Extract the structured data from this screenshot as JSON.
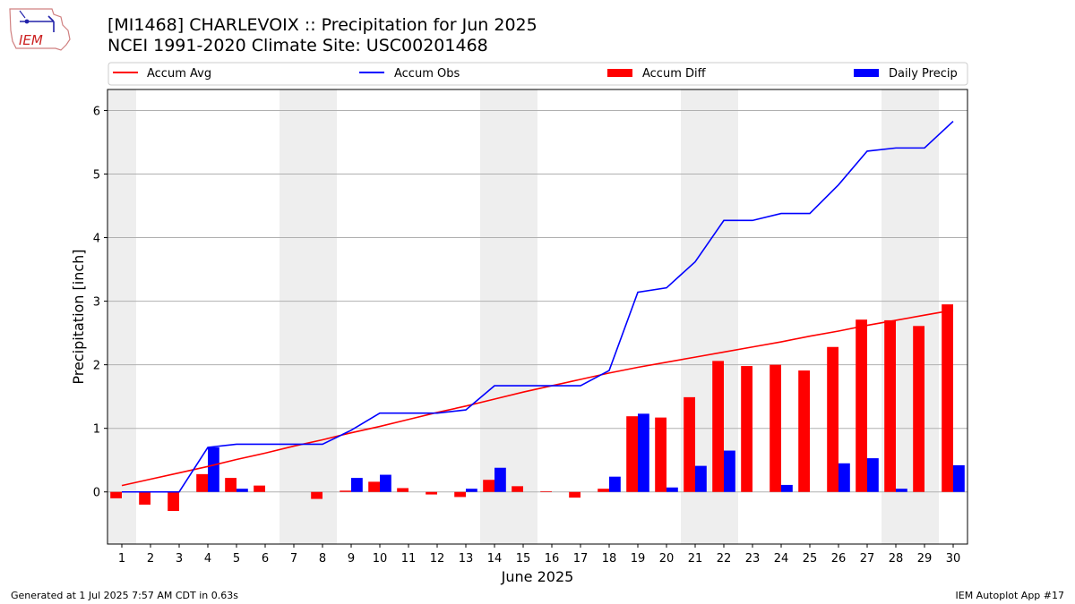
{
  "header": {
    "title_line1": "[MI1468] CHARLEVOIX :: Precipitation for Jun 2025",
    "title_line2": "NCEI 1991-2020 Climate Site: USC00201468",
    "logo_text": "IEM"
  },
  "footer": {
    "generated": "Generated at 1 Jul 2025 7:57 AM CDT in 0.63s",
    "app": "IEM Autoplot App #17"
  },
  "colors": {
    "accum_avg": "#ff0000",
    "accum_obs": "#0000ff",
    "accum_diff": "#ff0000",
    "daily_precip": "#0000ff",
    "weekend_shade": "#eeeeee",
    "grid": "#b0b0b0"
  },
  "chart_data": {
    "type": "bar",
    "xlabel": "June 2025",
    "ylabel": "Precipitation [inch]",
    "ylim": [
      -0.82,
      6.33
    ],
    "xlim": [
      0.5,
      30.5
    ],
    "yticks": [
      0,
      1,
      2,
      3,
      4,
      5,
      6
    ],
    "grid": "horizontal",
    "legend_placement": "top (above plot)",
    "categories": [
      "1",
      "2",
      "3",
      "4",
      "5",
      "6",
      "7",
      "8",
      "9",
      "10",
      "11",
      "12",
      "13",
      "14",
      "15",
      "16",
      "17",
      "18",
      "19",
      "20",
      "21",
      "22",
      "23",
      "24",
      "25",
      "26",
      "27",
      "28",
      "29",
      "30"
    ],
    "shaded_days": [
      [
        0.5,
        1.5
      ],
      [
        6.5,
        8.5
      ],
      [
        13.5,
        15.5
      ],
      [
        20.5,
        22.5
      ],
      [
        27.5,
        29.5
      ]
    ],
    "legend": [
      "Accum Avg",
      "Accum Obs",
      "Accum Diff",
      "Daily Precip"
    ],
    "series": [
      {
        "name": "Accum Avg",
        "kind": "line",
        "values": [
          0.1,
          0.2,
          0.3,
          0.4,
          0.51,
          0.61,
          0.72,
          0.82,
          0.93,
          1.03,
          1.14,
          1.25,
          1.35,
          1.46,
          1.57,
          1.67,
          1.77,
          1.87,
          1.96,
          2.04,
          2.12,
          2.2,
          2.28,
          2.36,
          2.45,
          2.53,
          2.62,
          2.7,
          2.78,
          2.86
        ]
      },
      {
        "name": "Accum Obs",
        "kind": "line",
        "values": [
          0.0,
          0.0,
          0.0,
          0.7,
          0.75,
          0.75,
          0.75,
          0.75,
          0.97,
          1.24,
          1.24,
          1.24,
          1.29,
          1.67,
          1.67,
          1.67,
          1.67,
          1.91,
          3.14,
          3.21,
          3.62,
          4.27,
          4.27,
          4.38,
          4.38,
          4.83,
          5.36,
          5.41,
          5.41,
          5.83
        ]
      },
      {
        "name": "Accum Diff",
        "kind": "bar",
        "values": [
          -0.1,
          -0.2,
          -0.3,
          0.28,
          0.22,
          0.1,
          0.0,
          -0.11,
          0.02,
          0.16,
          0.06,
          -0.04,
          -0.08,
          0.19,
          0.09,
          0.01,
          -0.09,
          0.05,
          1.19,
          1.17,
          1.49,
          2.06,
          1.98,
          2.0,
          1.91,
          2.28,
          2.71,
          2.7,
          2.61,
          2.95
        ]
      },
      {
        "name": "Daily Precip",
        "kind": "bar",
        "values": [
          0.0,
          0.0,
          0.0,
          0.7,
          0.05,
          0.0,
          0.0,
          0.0,
          0.22,
          0.27,
          0.0,
          0.0,
          0.05,
          0.38,
          0.0,
          0.0,
          0.0,
          0.24,
          1.23,
          0.07,
          0.41,
          0.65,
          0.0,
          0.11,
          0.0,
          0.45,
          0.53,
          0.05,
          0.0,
          0.42
        ]
      }
    ]
  }
}
